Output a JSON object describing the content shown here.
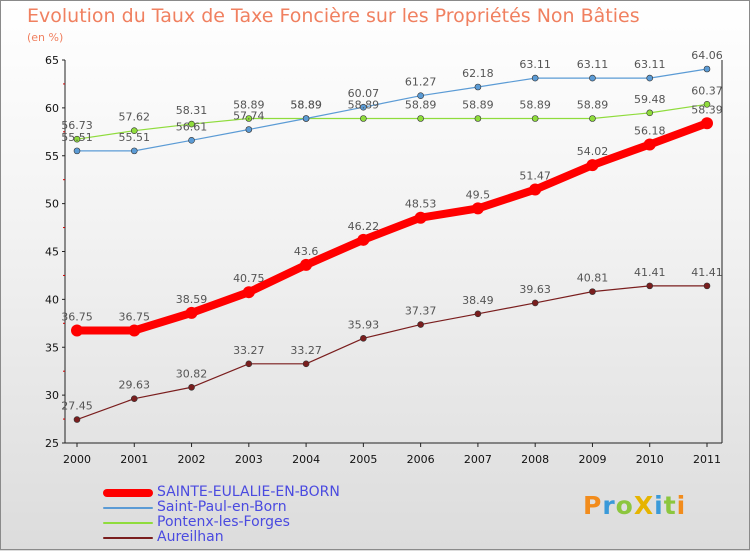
{
  "chart_data": {
    "type": "line",
    "title": "Evolution du Taux de Taxe Foncière sur les Propriétés Non Bâties",
    "subtitle": "(en %)",
    "xlabel": "",
    "ylabel": "",
    "x": [
      "2000",
      "2001",
      "2002",
      "2003",
      "2004",
      "2005",
      "2006",
      "2007",
      "2008",
      "2009",
      "2010",
      "2011"
    ],
    "ylim": [
      25,
      65
    ],
    "yticks": [
      "25",
      "30",
      "35",
      "40",
      "45",
      "50",
      "55",
      "60",
      "65"
    ],
    "grid": false,
    "legend_position": "bottom-left",
    "series": [
      {
        "name": "SAINTE-EULALIE-EN-BORN",
        "color": "#ff0000",
        "values": [
          36.75,
          36.75,
          38.59,
          40.75,
          43.6,
          46.22,
          48.53,
          49.5,
          51.47,
          54.02,
          56.18,
          58.39
        ],
        "labels": [
          "36.75",
          "36.75",
          "38.59",
          "40.75",
          "43.6",
          "46.22",
          "48.53",
          "49.5",
          "51.47",
          "54.02",
          "56.18",
          "58.39"
        ]
      },
      {
        "name": "Saint-Paul-en-Born",
        "color": "#5b9bd5",
        "values": [
          55.51,
          55.51,
          56.61,
          57.74,
          58.89,
          60.07,
          61.27,
          62.18,
          63.11,
          63.11,
          63.11,
          64.06
        ],
        "labels": [
          "55.51",
          "55.51",
          "56.61",
          "57.74",
          "58.89",
          "60.07",
          "61.27",
          "62.18",
          "63.11",
          "63.11",
          "63.11",
          "64.06"
        ]
      },
      {
        "name": "Pontenx-les-Forges",
        "color": "#8fdc3c",
        "values": [
          56.73,
          57.62,
          58.31,
          58.89,
          58.89,
          58.89,
          58.89,
          58.89,
          58.89,
          58.89,
          59.48,
          60.37
        ],
        "labels": [
          "56.73",
          "57.62",
          "58.31",
          "58.89",
          "58.89",
          "58.89",
          "58.89",
          "58.89",
          "58.89",
          "58.89",
          "59.48",
          "60.37"
        ]
      },
      {
        "name": "Aureilhan",
        "color": "#7a1e1e",
        "values": [
          27.45,
          29.63,
          30.82,
          33.27,
          33.27,
          35.93,
          37.37,
          38.49,
          39.63,
          40.81,
          41.41,
          41.41
        ],
        "labels": [
          "27.45",
          "29.63",
          "30.82",
          "33.27",
          "33.27",
          "35.93",
          "37.37",
          "38.49",
          "39.63",
          "40.81",
          "41.41",
          "41.41"
        ]
      }
    ]
  },
  "logo": {
    "text": "ProXiti",
    "letters": [
      {
        "ch": "P",
        "color": "#f28c1c"
      },
      {
        "ch": "r",
        "color": "#3a9ad9"
      },
      {
        "ch": "o",
        "color": "#8cc63e"
      },
      {
        "ch": "X",
        "color": "#e6b400"
      },
      {
        "ch": "i",
        "color": "#3a9ad9"
      },
      {
        "ch": "t",
        "color": "#8cc63e"
      },
      {
        "ch": "i",
        "color": "#f28c1c"
      }
    ]
  }
}
